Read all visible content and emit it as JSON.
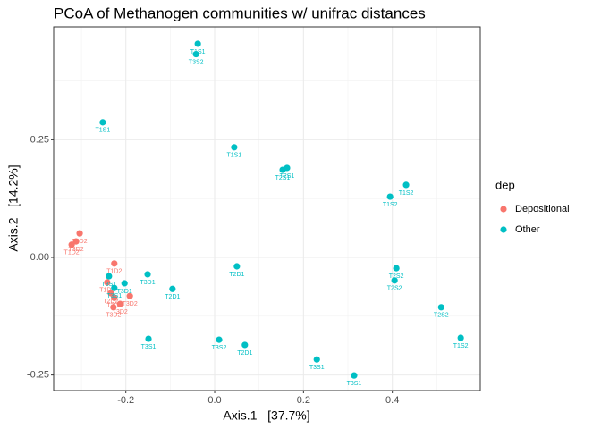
{
  "chart_data": {
    "type": "scatter",
    "title": "PCoA of Methanogen communities w/ unifrac distances",
    "x_label": "Axis.1   [37.7%]",
    "y_label": "Axis.2   [14.2%]",
    "legend_title": "dep",
    "legend_position": "right",
    "grid": true,
    "xlim": [
      -0.3625,
      0.598
    ],
    "ylim": [
      -0.283,
      0.49
    ],
    "xticks": [
      -0.2,
      {
        "value": 0,
        "label": "0.0"
      },
      0.2,
      0.4
    ],
    "yticks": [
      -0.25,
      {
        "value": 0,
        "label": "0.00"
      },
      0.25
    ],
    "series": [
      {
        "name": "Depositional",
        "color": "#F8766D",
        "x": [
          -0.304,
          -0.312,
          -0.322,
          -0.226,
          -0.242,
          -0.234,
          -0.226,
          -0.191,
          -0.213,
          -0.228
        ],
        "values": [
          0.051,
          0.034,
          0.027,
          -0.013,
          -0.053,
          -0.076,
          -0.086,
          -0.082,
          -0.099,
          -0.106
        ],
        "labels": [
          "T3D2",
          "T3D2",
          "T1D2",
          "T1D2",
          "T1D2",
          "T2D2",
          "T3D2",
          "T3D2",
          "T3D2",
          "T3D2"
        ]
      },
      {
        "name": "Other",
        "color": "#00BFC4",
        "x": [
          -0.038,
          -0.042,
          -0.252,
          0.044,
          0.153,
          0.163,
          0.395,
          0.431,
          0.05,
          0.409,
          0.405,
          -0.151,
          -0.095,
          -0.203,
          -0.238,
          -0.226,
          0.51,
          0.554,
          -0.149,
          0.01,
          0.068,
          0.23,
          0.314
        ],
        "values": [
          0.454,
          0.432,
          0.287,
          0.234,
          0.186,
          0.19,
          0.129,
          0.154,
          -0.019,
          -0.023,
          -0.049,
          -0.036,
          -0.067,
          -0.055,
          -0.04,
          -0.065,
          -0.106,
          -0.171,
          -0.173,
          -0.175,
          -0.186,
          -0.217,
          -0.251
        ],
        "labels": [
          "T1S1",
          "T3S2",
          "T1S1",
          "T1S1",
          "T2S1",
          "T2S1",
          "T1S2",
          "T1S2",
          "T2D1",
          "T2S2",
          "T2S2",
          "T3D1",
          "T2D1",
          "T3D1",
          "T3S1",
          "T3S1",
          "T2S2",
          "T1S2",
          "T3S1",
          "T3S2",
          "T2D1",
          "T3S1",
          "T3S1"
        ]
      }
    ]
  }
}
